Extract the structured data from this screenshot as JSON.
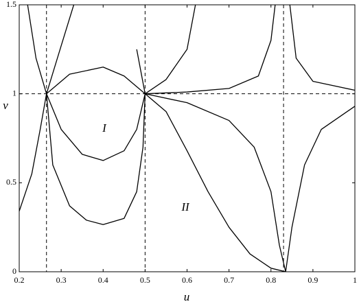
{
  "chart_data": {
    "type": "line",
    "xlabel": "u",
    "ylabel": "v",
    "xlim": [
      0.2,
      1
    ],
    "ylim": [
      0,
      1.5
    ],
    "xticks": [
      0.2,
      0.3,
      0.4,
      0.5,
      0.6,
      0.7,
      0.8,
      0.9,
      1
    ],
    "yticks": [
      0,
      0.5,
      1,
      1.5
    ],
    "color": "#000000",
    "reference_u": [
      0.265,
      0.5,
      0.83
    ],
    "reference_v": [
      1,
      0
    ],
    "annotations": [
      "I",
      "II"
    ],
    "series": [
      {
        "x": [
          0.22,
          0.24,
          0.265
        ],
        "values": [
          1.5,
          1.2,
          1
        ]
      },
      {
        "x": [
          0.2,
          0.23,
          0.25,
          0.265
        ],
        "values": [
          0.34,
          0.55,
          0.8,
          1
        ]
      },
      {
        "x": [
          0.265,
          0.3,
          0.33,
          0.46,
          0.48,
          0.5
        ],
        "values": [
          1,
          1.27,
          1.5,
          null,
          1.25,
          1
        ]
      },
      {
        "x": [
          0.265,
          0.32,
          0.4,
          0.45,
          0.5
        ],
        "values": [
          1,
          1.11,
          1.15,
          1.1,
          1
        ]
      },
      {
        "x": [
          0.265,
          0.3,
          0.35,
          0.4,
          0.45,
          0.48,
          0.5
        ],
        "values": [
          1,
          0.8,
          0.66,
          0.625,
          0.68,
          0.8,
          1
        ]
      },
      {
        "x": [
          0.265,
          0.28,
          0.32,
          0.36,
          0.4,
          0.45,
          0.48,
          0.495,
          0.5
        ],
        "values": [
          1,
          0.6,
          0.37,
          0.29,
          0.265,
          0.3,
          0.45,
          0.7,
          1
        ]
      },
      {
        "x": [
          0.5,
          0.55,
          0.6,
          0.62
        ],
        "values": [
          1,
          1.08,
          1.25,
          1.5
        ]
      },
      {
        "x": [
          0.5,
          0.6,
          0.7,
          0.77,
          0.8,
          0.81
        ],
        "values": [
          1,
          1.01,
          1.03,
          1.1,
          1.3,
          1.5
        ]
      },
      {
        "x": [
          0.845,
          0.86,
          0.9,
          1
        ],
        "values": [
          1.5,
          1.2,
          1.07,
          1.02
        ]
      },
      {
        "x": [
          0.5,
          0.6,
          0.7,
          0.76,
          0.8,
          0.82,
          0.835
        ],
        "values": [
          1,
          0.95,
          0.85,
          0.7,
          0.45,
          0.15,
          0
        ]
      },
      {
        "x": [
          0.5,
          0.55,
          0.6,
          0.65,
          0.7,
          0.75,
          0.8,
          0.835
        ],
        "values": [
          1,
          0.9,
          0.68,
          0.45,
          0.25,
          0.1,
          0.02,
          0
        ]
      },
      {
        "x": [
          0.835,
          0.85,
          0.88,
          0.92,
          1
        ],
        "values": [
          0,
          0.25,
          0.6,
          0.8,
          0.93
        ]
      }
    ]
  }
}
